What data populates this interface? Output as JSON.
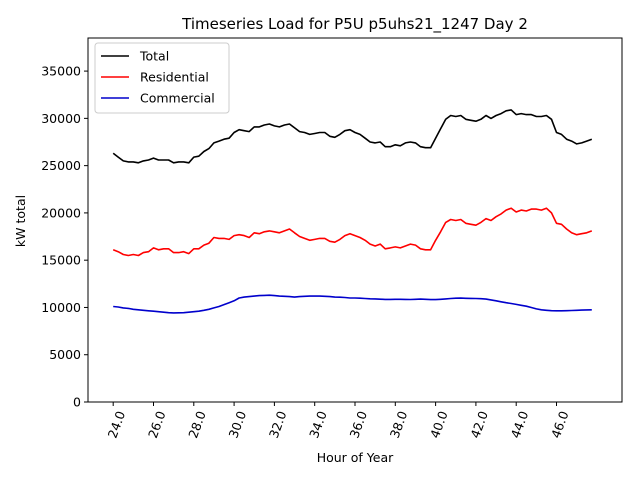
{
  "chart_data": {
    "type": "line",
    "title": "Timeseries Load for P5U p5uhs21_1247  Day 2",
    "xlabel": "Hour of Year",
    "ylabel": "kW total",
    "xlim": [
      22.75,
      49.25
    ],
    "ylim": [
      0,
      38500
    ],
    "xticks": [
      24,
      26,
      28,
      30,
      32,
      34,
      36,
      38,
      40,
      42,
      44,
      46
    ],
    "xtick_labels": [
      "24.0",
      "26.0",
      "28.0",
      "30.0",
      "32.0",
      "34.0",
      "36.0",
      "38.0",
      "40.0",
      "42.0",
      "44.0",
      "46.0"
    ],
    "yticks": [
      0,
      5000,
      10000,
      15000,
      20000,
      25000,
      30000,
      35000
    ],
    "ytick_labels": [
      "0",
      "5000",
      "10000",
      "15000",
      "20000",
      "25000",
      "30000",
      "35000"
    ],
    "legend_position": "top-left",
    "x": [
      24.0,
      24.25,
      24.5,
      24.75,
      25.0,
      25.25,
      25.5,
      25.75,
      26.0,
      26.25,
      26.5,
      26.75,
      27.0,
      27.25,
      27.5,
      27.75,
      28.0,
      28.25,
      28.5,
      28.75,
      29.0,
      29.25,
      29.5,
      29.75,
      30.0,
      30.25,
      30.5,
      30.75,
      31.0,
      31.25,
      31.5,
      31.75,
      32.0,
      32.25,
      32.5,
      32.75,
      33.0,
      33.25,
      33.5,
      33.75,
      34.0,
      34.25,
      34.5,
      34.75,
      35.0,
      35.25,
      35.5,
      35.75,
      36.0,
      36.25,
      36.5,
      36.75,
      37.0,
      37.25,
      37.5,
      37.75,
      38.0,
      38.25,
      38.5,
      38.75,
      39.0,
      39.25,
      39.5,
      39.75,
      40.0,
      40.25,
      40.5,
      40.75,
      41.0,
      41.25,
      41.5,
      41.75,
      42.0,
      42.25,
      42.5,
      42.75,
      43.0,
      43.25,
      43.5,
      43.75,
      44.0,
      44.25,
      44.5,
      44.75,
      45.0,
      45.25,
      45.5,
      45.75,
      46.0,
      46.25,
      46.5,
      46.75,
      47.0,
      47.25,
      47.5,
      47.75
    ],
    "series": [
      {
        "name": "Total",
        "color": "#000000",
        "values": [
          26300,
          25900,
          25500,
          25400,
          25400,
          25300,
          25500,
          25600,
          25800,
          25600,
          25600,
          25600,
          25300,
          25400,
          25400,
          25300,
          25900,
          26000,
          26500,
          26800,
          27400,
          27600,
          27800,
          27900,
          28500,
          28800,
          28700,
          28600,
          29100,
          29100,
          29300,
          29400,
          29200,
          29100,
          29300,
          29400,
          29000,
          28600,
          28500,
          28300,
          28400,
          28500,
          28500,
          28100,
          28000,
          28300,
          28700,
          28800,
          28500,
          28300,
          27900,
          27500,
          27400,
          27500,
          27000,
          27000,
          27200,
          27100,
          27400,
          27500,
          27400,
          27000,
          26900,
          26900,
          27900,
          28900,
          29900,
          30300,
          30200,
          30300,
          29900,
          29800,
          29700,
          29900,
          30300,
          30000,
          30300,
          30500,
          30800,
          30900,
          30400,
          30500,
          30400,
          30400,
          30200,
          30200,
          30300,
          29900,
          28500,
          28300,
          27800,
          27600,
          27300,
          27400,
          27600,
          27800
        ]
      },
      {
        "name": "Residential",
        "color": "#ff0000",
        "values": [
          16100,
          15900,
          15600,
          15500,
          15600,
          15500,
          15800,
          15900,
          16300,
          16100,
          16200,
          16200,
          15800,
          15800,
          15900,
          15700,
          16200,
          16200,
          16600,
          16800,
          17400,
          17300,
          17300,
          17200,
          17600,
          17700,
          17600,
          17400,
          17900,
          17800,
          18000,
          18100,
          18000,
          17900,
          18100,
          18300,
          17900,
          17500,
          17300,
          17100,
          17200,
          17300,
          17300,
          17000,
          16900,
          17200,
          17600,
          17800,
          17600,
          17400,
          17100,
          16700,
          16500,
          16700,
          16200,
          16300,
          16400,
          16300,
          16500,
          16700,
          16600,
          16200,
          16100,
          16100,
          17100,
          18000,
          19000,
          19300,
          19200,
          19300,
          18900,
          18800,
          18700,
          19000,
          19400,
          19200,
          19600,
          19900,
          20300,
          20500,
          20100,
          20300,
          20200,
          20400,
          20400,
          20300,
          20500,
          20000,
          18900,
          18800,
          18300,
          17900,
          17700,
          17800,
          17900,
          18100
        ]
      },
      {
        "name": "Commercial",
        "color": "#0000cc",
        "values": [
          10100,
          10050,
          9950,
          9900,
          9800,
          9750,
          9700,
          9650,
          9600,
          9550,
          9500,
          9450,
          9420,
          9430,
          9450,
          9500,
          9550,
          9600,
          9700,
          9800,
          9950,
          10100,
          10300,
          10500,
          10700,
          11000,
          11100,
          11150,
          11200,
          11250,
          11280,
          11300,
          11250,
          11200,
          11180,
          11150,
          11100,
          11150,
          11180,
          11200,
          11200,
          11200,
          11180,
          11150,
          11100,
          11080,
          11050,
          11000,
          11000,
          10980,
          10950,
          10920,
          10900,
          10870,
          10850,
          10850,
          10860,
          10860,
          10850,
          10840,
          10860,
          10880,
          10860,
          10830,
          10830,
          10860,
          10900,
          10950,
          10980,
          10990,
          10970,
          10960,
          10950,
          10930,
          10880,
          10800,
          10700,
          10600,
          10500,
          10420,
          10320,
          10230,
          10130,
          10000,
          9850,
          9750,
          9700,
          9660,
          9650,
          9650,
          9660,
          9680,
          9700,
          9720,
          9740,
          9750
        ]
      }
    ]
  }
}
